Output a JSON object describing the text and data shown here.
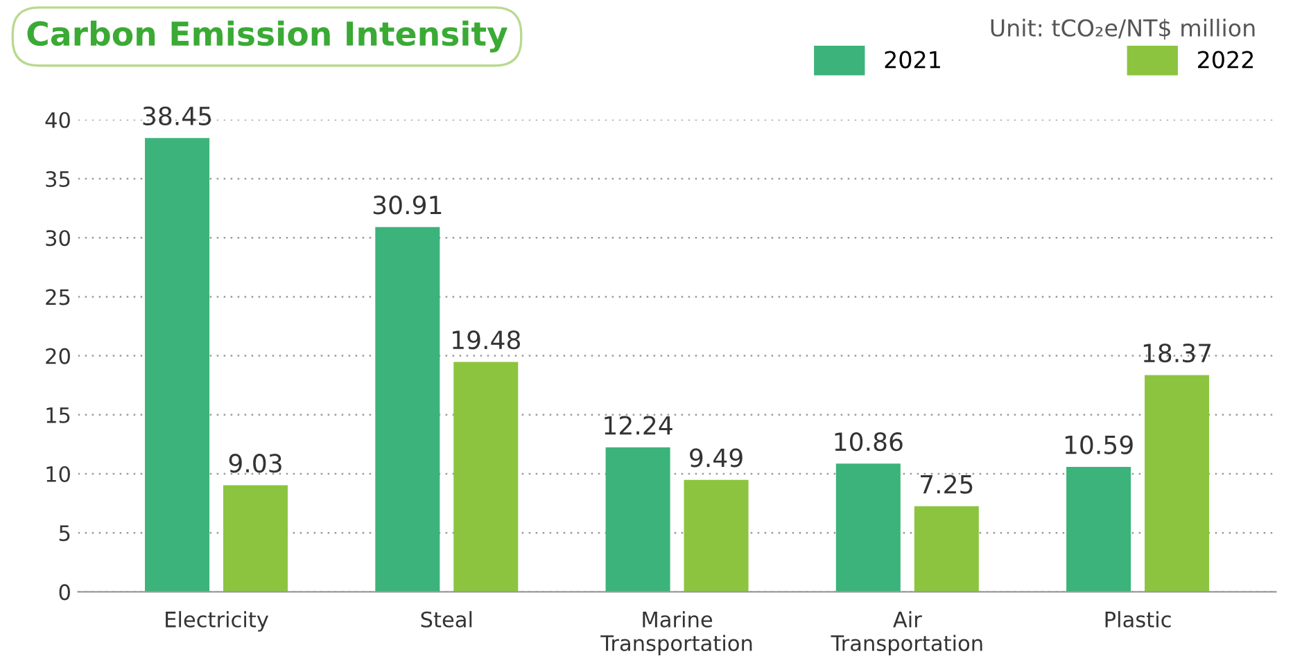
{
  "chart_data": {
    "type": "bar",
    "title": "Carbon Emission Intensity",
    "annotations": [
      "Unit: tCO₂e/NT$ million"
    ],
    "categories": [
      "Electricity",
      "Steal",
      "Marine\nTransportation",
      "Air\nTransportation",
      "Plastic"
    ],
    "series": [
      {
        "name": "2021",
        "color": "#3cb37a",
        "values": [
          38.45,
          30.91,
          12.24,
          10.86,
          10.59
        ]
      },
      {
        "name": "2022",
        "color": "#8cc43f",
        "values": [
          9.03,
          19.48,
          9.49,
          7.25,
          18.37
        ]
      }
    ],
    "ylim": [
      0,
      40
    ],
    "yticks": [
      0,
      5,
      10,
      15,
      20,
      25,
      30,
      35,
      40
    ],
    "grid": "y",
    "legend": "top right",
    "data_labels": true
  }
}
